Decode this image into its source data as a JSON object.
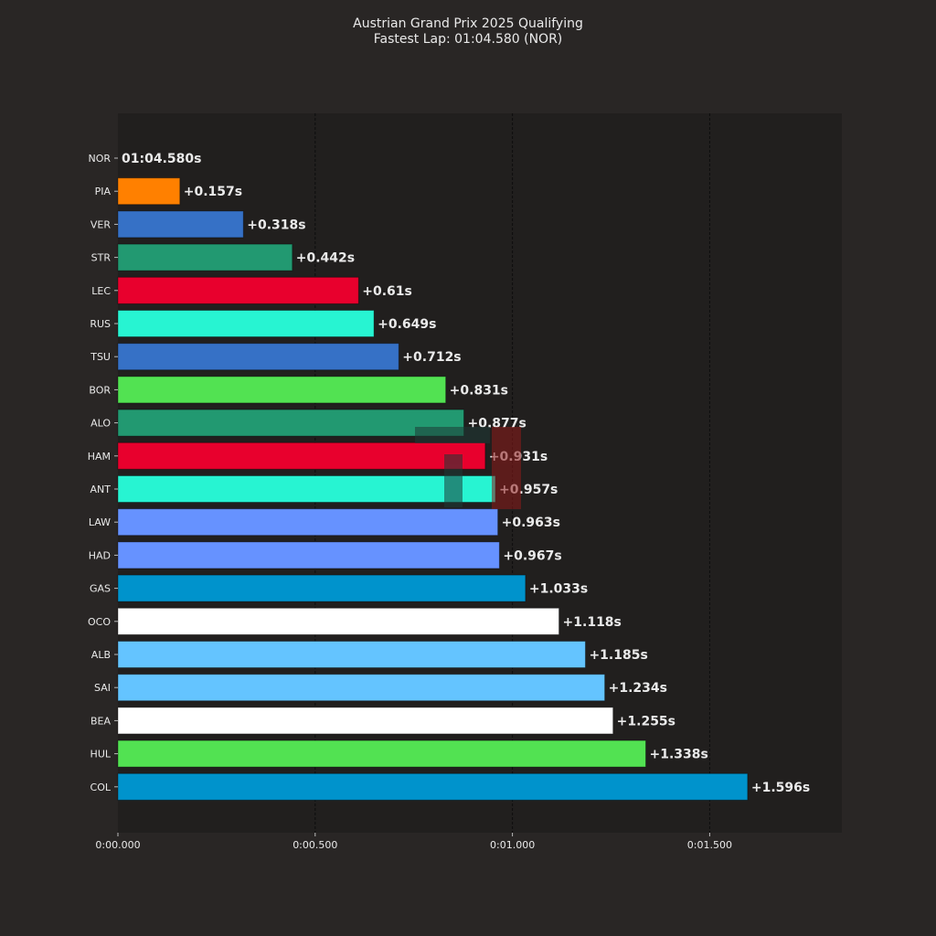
{
  "chart_data": {
    "type": "bar",
    "orientation": "horizontal",
    "title": "Austrian Grand Prix 2025 Qualifying",
    "subtitle": "Fastest Lap: 01:04.580 (NOR)",
    "xlim": [
      0,
      1.835
    ],
    "x_ticks": [
      {
        "value": 0,
        "label": "0:00.000"
      },
      {
        "value": 0.5,
        "label": "0:00.500"
      },
      {
        "value": 1.0,
        "label": "0:01.000"
      },
      {
        "value": 1.5,
        "label": "0:01.500"
      }
    ],
    "grid": "vertical",
    "colors": {
      "background": "#292625",
      "plot_background": "#211f1e",
      "text": "#eaeaea",
      "grid": "#0d0d0d"
    },
    "bars": [
      {
        "driver": "NOR",
        "gap": 0.0,
        "label": "01:04.580s",
        "color": "#ff8000"
      },
      {
        "driver": "PIA",
        "gap": 0.157,
        "label": "+0.157s",
        "color": "#ff8000"
      },
      {
        "driver": "VER",
        "gap": 0.318,
        "label": "+0.318s",
        "color": "#3671c6"
      },
      {
        "driver": "STR",
        "gap": 0.442,
        "label": "+0.442s",
        "color": "#229971"
      },
      {
        "driver": "LEC",
        "gap": 0.61,
        "label": "+0.61s",
        "color": "#e8002d"
      },
      {
        "driver": "RUS",
        "gap": 0.649,
        "label": "+0.649s",
        "color": "#27f4d2"
      },
      {
        "driver": "TSU",
        "gap": 0.712,
        "label": "+0.712s",
        "color": "#3671c6"
      },
      {
        "driver": "BOR",
        "gap": 0.831,
        "label": "+0.831s",
        "color": "#52e252"
      },
      {
        "driver": "ALO",
        "gap": 0.877,
        "label": "+0.877s",
        "color": "#229971"
      },
      {
        "driver": "HAM",
        "gap": 0.931,
        "label": "+0.931s",
        "color": "#e8002d"
      },
      {
        "driver": "ANT",
        "gap": 0.957,
        "label": "+0.957s",
        "color": "#27f4d2"
      },
      {
        "driver": "LAW",
        "gap": 0.963,
        "label": "+0.963s",
        "color": "#6692ff"
      },
      {
        "driver": "HAD",
        "gap": 0.967,
        "label": "+0.967s",
        "color": "#6692ff"
      },
      {
        "driver": "GAS",
        "gap": 1.033,
        "label": "+1.033s",
        "color": "#0093cc"
      },
      {
        "driver": "OCO",
        "gap": 1.118,
        "label": "+1.118s",
        "color": "#ffffff"
      },
      {
        "driver": "ALB",
        "gap": 1.185,
        "label": "+1.185s",
        "color": "#64c4ff"
      },
      {
        "driver": "SAI",
        "gap": 1.234,
        "label": "+1.234s",
        "color": "#64c4ff"
      },
      {
        "driver": "BEA",
        "gap": 1.255,
        "label": "+1.255s",
        "color": "#ffffff"
      },
      {
        "driver": "HUL",
        "gap": 1.338,
        "label": "+1.338s",
        "color": "#52e252"
      },
      {
        "driver": "COL",
        "gap": 1.596,
        "label": "+1.596s",
        "color": "#0093cc"
      }
    ]
  }
}
